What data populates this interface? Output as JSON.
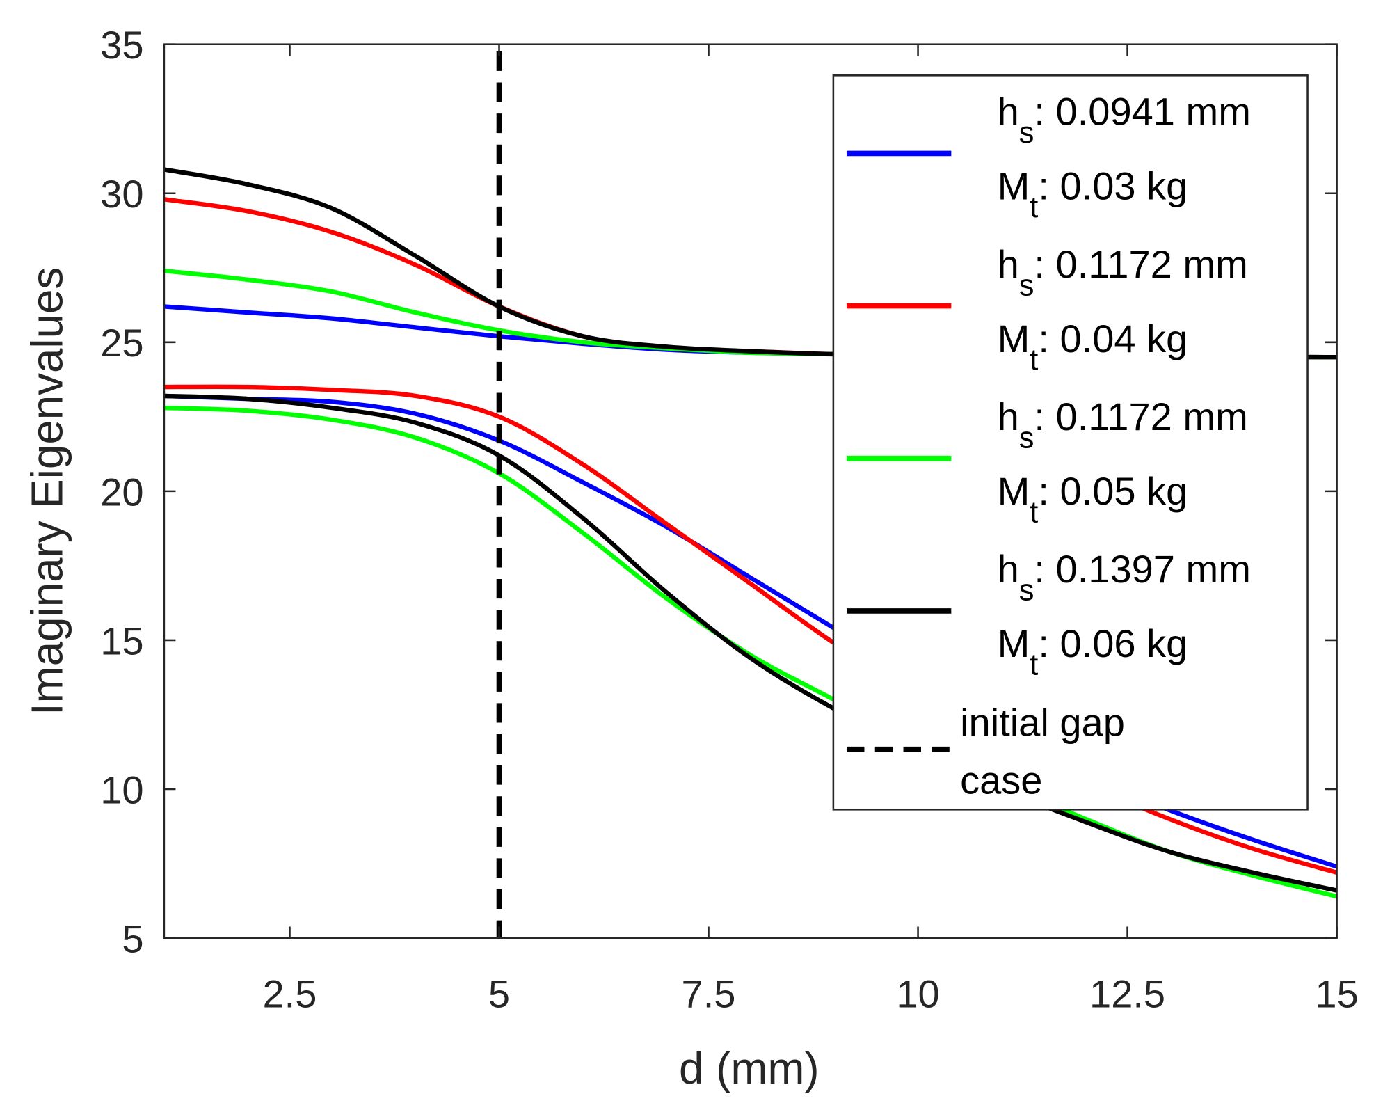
{
  "chart_data": {
    "type": "line",
    "title": "",
    "xlabel": "d (mm)",
    "ylabel": "Imaginary Eigenvalues",
    "xlim": [
      1,
      15
    ],
    "ylim": [
      5,
      35
    ],
    "xticks": [
      2.5,
      5,
      7.5,
      10,
      12.5,
      15
    ],
    "xtick_labels": [
      "2.5",
      "5",
      "7.5",
      "10",
      "12.5",
      "15"
    ],
    "yticks": [
      5,
      10,
      15,
      20,
      25,
      30,
      35
    ],
    "ytick_labels": [
      "5",
      "10",
      "15",
      "20",
      "25",
      "30",
      "35"
    ],
    "grid": false,
    "legend_placement": "top-right",
    "x": [
      1,
      2,
      3,
      4,
      5,
      6,
      7,
      8,
      9,
      10,
      11,
      12,
      13,
      14,
      15
    ],
    "series": [
      {
        "name": "hs: 0.0941 mm, Mt: 0.03 kg",
        "color": "#0000ff",
        "upper": [
          26.2,
          26.0,
          25.8,
          25.5,
          25.2,
          24.95,
          24.75,
          24.65,
          24.6,
          24.57,
          24.55,
          24.53,
          24.52,
          24.51,
          24.5
        ],
        "lower": [
          23.2,
          23.1,
          23.0,
          22.6,
          21.7,
          20.3,
          18.8,
          17.1,
          15.4,
          13.7,
          12.0,
          10.5,
          9.3,
          8.3,
          7.4
        ]
      },
      {
        "name": "hs: 0.1172 mm, Mt: 0.04 kg",
        "color": "#ff0000",
        "upper": [
          29.8,
          29.4,
          28.7,
          27.6,
          26.2,
          25.2,
          24.8,
          24.7,
          24.6,
          24.57,
          24.55,
          24.53,
          24.52,
          24.51,
          24.5
        ],
        "lower": [
          23.5,
          23.5,
          23.4,
          23.2,
          22.5,
          20.9,
          18.9,
          16.9,
          14.9,
          13.2,
          11.6,
          10.2,
          9.0,
          8.0,
          7.2
        ]
      },
      {
        "name": "hs: 0.1172 mm, Mt: 0.05 kg",
        "color": "#00ff00",
        "upper": [
          27.4,
          27.1,
          26.7,
          26.0,
          25.4,
          25.0,
          24.8,
          24.65,
          24.6,
          24.57,
          24.55,
          24.53,
          24.52,
          24.51,
          24.5
        ],
        "lower": [
          22.8,
          22.7,
          22.4,
          21.8,
          20.6,
          18.6,
          16.4,
          14.5,
          13.0,
          11.5,
          10.2,
          9.0,
          7.9,
          7.1,
          6.4
        ]
      },
      {
        "name": "hs: 0.1397 mm, Mt: 0.06 kg",
        "color": "#000000",
        "upper": [
          30.8,
          30.3,
          29.5,
          27.9,
          26.2,
          25.2,
          24.85,
          24.7,
          24.6,
          24.57,
          24.55,
          24.53,
          24.52,
          24.51,
          24.5
        ],
        "lower": [
          23.2,
          23.1,
          22.8,
          22.3,
          21.2,
          19.1,
          16.6,
          14.4,
          12.7,
          11.3,
          10.0,
          8.9,
          7.9,
          7.2,
          6.6
        ]
      }
    ],
    "vline": {
      "x": 5,
      "label": "initial gap case",
      "style": "dashed",
      "color": "#000000"
    }
  },
  "legend": {
    "h_symbol": "h",
    "h_sub": "s",
    "m_symbol": "M",
    "m_sub": "t",
    "entries": [
      {
        "hs": ": 0.0941 mm",
        "mt": ": 0.03 kg"
      },
      {
        "hs": ": 0.1172 mm",
        "mt": ": 0.04 kg"
      },
      {
        "hs": ": 0.1172 mm",
        "mt": ": 0.05 kg"
      },
      {
        "hs": ": 0.1397 mm",
        "mt": ": 0.06 kg"
      }
    ],
    "vline_line1": "initial gap",
    "vline_line2": "case"
  }
}
